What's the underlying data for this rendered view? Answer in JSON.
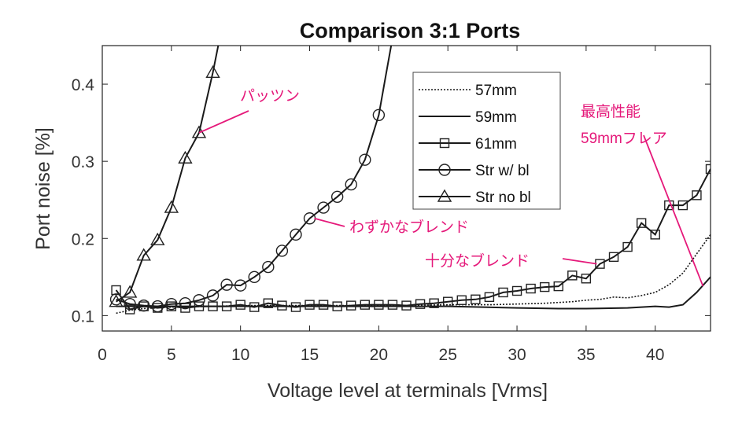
{
  "chart_data": {
    "type": "line",
    "title": "Comparison 3:1 Ports",
    "xlabel": "Voltage level at terminals [Vrms]",
    "ylabel": "Port noise [%]",
    "xlim": [
      0,
      44
    ],
    "ylim": [
      0.08,
      0.45
    ],
    "xticks": [
      "0",
      "5",
      "10",
      "15",
      "20",
      "25",
      "30",
      "35",
      "40"
    ],
    "xtick_values": [
      0,
      5,
      10,
      15,
      20,
      25,
      30,
      35,
      40
    ],
    "yticks": [
      "0.1",
      "0.2",
      "0.3",
      "0.4"
    ],
    "ytick_values": [
      0.1,
      0.2,
      0.3,
      0.4
    ],
    "grid": false,
    "legend_position": "top-center",
    "series": [
      {
        "name": "57mm",
        "line": "dotted",
        "marker": "none",
        "x": [
          1,
          2,
          3,
          5,
          8,
          10,
          12,
          15,
          18,
          20,
          22,
          25,
          28,
          30,
          32,
          34,
          35,
          36,
          37,
          38,
          39,
          40,
          41,
          42,
          43,
          44
        ],
        "y": [
          0.103,
          0.107,
          0.109,
          0.111,
          0.112,
          0.113,
          0.113,
          0.113,
          0.113,
          0.113,
          0.113,
          0.114,
          0.114,
          0.115,
          0.116,
          0.118,
          0.12,
          0.121,
          0.124,
          0.123,
          0.126,
          0.13,
          0.14,
          0.155,
          0.18,
          0.205
        ]
      },
      {
        "name": "59mm",
        "line": "solid",
        "marker": "none",
        "x": [
          1,
          3,
          5,
          10,
          15,
          20,
          25,
          30,
          33,
          35,
          38,
          40,
          41,
          42,
          43,
          44
        ],
        "y": [
          0.112,
          0.112,
          0.112,
          0.112,
          0.112,
          0.112,
          0.112,
          0.11,
          0.109,
          0.109,
          0.11,
          0.112,
          0.111,
          0.114,
          0.13,
          0.15
        ]
      },
      {
        "name": "61mm",
        "line": "solid",
        "marker": "square",
        "x": [
          1,
          2,
          3,
          4,
          5,
          6,
          7,
          8,
          9,
          10,
          11,
          12,
          13,
          14,
          15,
          16,
          17,
          18,
          19,
          20,
          21,
          22,
          23,
          24,
          25,
          26,
          27,
          28,
          29,
          30,
          31,
          32,
          33,
          34,
          35,
          36,
          37,
          38,
          39,
          40,
          41,
          42,
          43,
          44
        ],
        "y": [
          0.133,
          0.108,
          0.112,
          0.11,
          0.112,
          0.11,
          0.112,
          0.112,
          0.112,
          0.114,
          0.111,
          0.116,
          0.113,
          0.111,
          0.114,
          0.114,
          0.112,
          0.113,
          0.114,
          0.114,
          0.114,
          0.113,
          0.115,
          0.116,
          0.118,
          0.12,
          0.121,
          0.124,
          0.13,
          0.132,
          0.135,
          0.137,
          0.138,
          0.152,
          0.148,
          0.167,
          0.176,
          0.189,
          0.22,
          0.205,
          0.243,
          0.243,
          0.256,
          0.29
        ]
      },
      {
        "name": "Str w/ bl",
        "line": "solid",
        "marker": "circle",
        "x": [
          1,
          2,
          3,
          4,
          5,
          6,
          7,
          8,
          9,
          10,
          11,
          12,
          13,
          14,
          15,
          16,
          17,
          18,
          19,
          20,
          20.5,
          21
        ],
        "y": [
          0.121,
          0.115,
          0.113,
          0.112,
          0.115,
          0.116,
          0.12,
          0.126,
          0.14,
          0.139,
          0.15,
          0.163,
          0.184,
          0.205,
          0.226,
          0.24,
          0.254,
          0.27,
          0.302,
          0.36,
          0.41,
          0.46
        ]
      },
      {
        "name": "Str no bl",
        "line": "solid",
        "marker": "triangle",
        "x": [
          1,
          2,
          3,
          4,
          5,
          6,
          7,
          8,
          8.5
        ],
        "y": [
          0.118,
          0.13,
          0.178,
          0.198,
          0.24,
          0.304,
          0.337,
          0.415,
          0.46
        ]
      }
    ],
    "markers": {
      "61mm": [
        1,
        2,
        3,
        4,
        5,
        6,
        7,
        8,
        9,
        10,
        11,
        12,
        13,
        14,
        15,
        16,
        17,
        18,
        19,
        20,
        21,
        22,
        23,
        24,
        25,
        26,
        27,
        28,
        29,
        30,
        31,
        32,
        33,
        34,
        35,
        36,
        37,
        38,
        39,
        40,
        41,
        42,
        43,
        44
      ],
      "Str w/ bl": [
        1,
        2,
        3,
        4,
        5,
        6,
        7,
        8,
        9,
        10,
        11,
        12,
        13,
        14,
        15,
        16,
        17,
        18,
        19,
        20
      ],
      "Str no bl": [
        1,
        2,
        3,
        4,
        5,
        6,
        7,
        8
      ]
    },
    "annotations": [
      {
        "text": "パッツン",
        "x": 7,
        "y": 0.337
      },
      {
        "text": "わずかなブレンド",
        "x": 15,
        "y": 0.226
      },
      {
        "text": "十分なブレンド",
        "x": 36,
        "y": 0.167
      },
      {
        "text": "最高性能",
        "x": 43,
        "y": 0.13
      },
      {
        "text": "59mmフレア",
        "x": 43,
        "y": 0.13
      }
    ]
  }
}
